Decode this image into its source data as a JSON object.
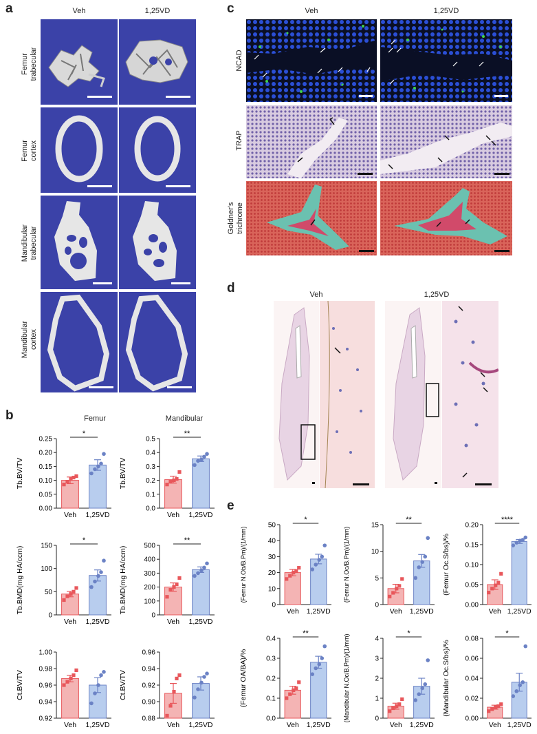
{
  "panels": {
    "a": "a",
    "b": "b",
    "c": "c",
    "d": "d",
    "e": "e"
  },
  "conditions": [
    "Veh",
    "1,25VD"
  ],
  "panel_a": {
    "rows": [
      "Femur\ntrabecular",
      "Femur\ncortex",
      "Mandibular\ntrabecular",
      "Mandibular\ncortex"
    ]
  },
  "panel_b": {
    "col_femur": "Femur",
    "col_mandibular": "Mandibular"
  },
  "panel_c": {
    "rows": [
      "NCAD",
      "TRAP",
      "Goldner's\ntrichrome"
    ]
  },
  "panel_d": {},
  "colors": {
    "veh_fill": "#f4b4b4",
    "veh_stroke": "#e8575b",
    "vd_fill": "#b8cdee",
    "vd_stroke": "#6b82c5",
    "microct_bg": "#3b42a8"
  },
  "chart_data": [
    {
      "id": "b-femur-bvtv",
      "type": "bar",
      "categories": [
        "Veh",
        "1,25VD"
      ],
      "ylabel": "Tb.BV/TV",
      "ylim": [
        0,
        0.25
      ],
      "yticks": [
        "0.00",
        "0.05",
        "0.10",
        "0.15",
        "0.20",
        "0.25"
      ],
      "tickvals": [
        0,
        0.05,
        0.1,
        0.15,
        0.2,
        0.25
      ],
      "values": [
        0.1,
        0.155
      ],
      "errors": [
        0.012,
        0.019
      ],
      "points": [
        [
          0.085,
          0.095,
          0.105,
          0.11,
          0.115
        ],
        [
          0.125,
          0.14,
          0.15,
          0.16,
          0.195
        ]
      ],
      "sig": "*"
    },
    {
      "id": "b-mand-bvtv",
      "type": "bar",
      "categories": [
        "Veh",
        "1,25VD"
      ],
      "ylabel": "Tb.BV/TV",
      "ylim": [
        0,
        0.5
      ],
      "yticks": [
        "0.0",
        "0.1",
        "0.2",
        "0.3",
        "0.4",
        "0.5"
      ],
      "tickvals": [
        0,
        0.1,
        0.2,
        0.3,
        0.4,
        0.5
      ],
      "values": [
        0.205,
        0.355
      ],
      "errors": [
        0.025,
        0.02
      ],
      "points": [
        [
          0.17,
          0.19,
          0.2,
          0.21,
          0.26
        ],
        [
          0.31,
          0.34,
          0.35,
          0.37,
          0.39
        ]
      ],
      "sig": "**"
    },
    {
      "id": "b-femur-bmd",
      "type": "bar",
      "categories": [
        "Veh",
        "1,25VD"
      ],
      "ylabel": "Tb.BMD(mg HA/ccm)",
      "ylim": [
        0,
        150
      ],
      "yticks": [
        "0",
        "50",
        "100",
        "150"
      ],
      "tickvals": [
        0,
        50,
        100,
        150
      ],
      "values": [
        45,
        85
      ],
      "errors": [
        6,
        12
      ],
      "points": [
        [
          32,
          40,
          45,
          50,
          58
        ],
        [
          60,
          72,
          84,
          92,
          117
        ]
      ],
      "sig": "*"
    },
    {
      "id": "b-mand-bmd",
      "type": "bar",
      "categories": [
        "Veh",
        "1,25VD"
      ],
      "ylabel": "Tb.BMD(mg HA/ccm)",
      "ylim": [
        0,
        500
      ],
      "yticks": [
        "0",
        "100",
        "200",
        "300",
        "400",
        "500"
      ],
      "tickvals": [
        0,
        100,
        200,
        300,
        400,
        500
      ],
      "values": [
        200,
        325
      ],
      "errors": [
        30,
        20
      ],
      "points": [
        [
          130,
          180,
          200,
          220,
          265
        ],
        [
          280,
          300,
          320,
          340,
          370
        ]
      ],
      "sig": "**"
    },
    {
      "id": "b-femur-ct",
      "type": "bar",
      "categories": [
        "Veh",
        "1,25VD"
      ],
      "ylabel": "Ct.BV/TV",
      "ylim": [
        0.92,
        1.0
      ],
      "yticks": [
        "0.92",
        "0.94",
        "0.96",
        "0.98",
        "1.00"
      ],
      "tickvals": [
        0.92,
        0.94,
        0.96,
        0.98,
        1.0
      ],
      "values": [
        0.968,
        0.96
      ],
      "errors": [
        0.004,
        0.009
      ],
      "points": [
        [
          0.96,
          0.964,
          0.968,
          0.972,
          0.978
        ],
        [
          0.938,
          0.95,
          0.96,
          0.972,
          0.976
        ]
      ],
      "sig": ""
    },
    {
      "id": "b-mand-ct",
      "type": "bar",
      "categories": [
        "Veh",
        "1,25VD"
      ],
      "ylabel": "Ct.BV/TV",
      "ylim": [
        0.88,
        0.96
      ],
      "yticks": [
        "0.88",
        "0.90",
        "0.92",
        "0.94",
        "0.96"
      ],
      "tickvals": [
        0.88,
        0.9,
        0.92,
        0.94,
        0.96
      ],
      "values": [
        0.91,
        0.922
      ],
      "errors": [
        0.012,
        0.008
      ],
      "points": [
        [
          0.883,
          0.895,
          0.912,
          0.928,
          0.932
        ],
        [
          0.905,
          0.915,
          0.923,
          0.93,
          0.934
        ]
      ],
      "sig": ""
    },
    {
      "id": "e-femur-nob",
      "type": "bar",
      "categories": [
        "Veh",
        "1,25VD"
      ],
      "ylabel": "(Femur N.Ob/B.Pm)/(1/mm)",
      "ylim": [
        0,
        50
      ],
      "yticks": [
        "0",
        "10",
        "20",
        "30",
        "40",
        "50"
      ],
      "tickvals": [
        0,
        10,
        20,
        30,
        40,
        50
      ],
      "values": [
        20,
        28.5
      ],
      "errors": [
        2,
        3
      ],
      "points": [
        [
          16,
          18,
          20,
          21,
          23
        ],
        [
          22,
          25,
          28,
          30,
          37
        ]
      ],
      "sig": "*"
    },
    {
      "id": "e-femur-noc",
      "type": "bar",
      "categories": [
        "Veh",
        "1,25VD"
      ],
      "ylabel": "(Femur N.Oc/B.Pm)/(1/mm)",
      "ylim": [
        0,
        15
      ],
      "yticks": [
        "0",
        "5",
        "10",
        "15"
      ],
      "tickvals": [
        0,
        5,
        10,
        15
      ],
      "values": [
        3,
        8.2
      ],
      "errors": [
        0.8,
        1.2
      ],
      "points": [
        [
          1.5,
          2.2,
          3.0,
          3.5,
          4.8
        ],
        [
          5.0,
          7.0,
          8.0,
          9.0,
          12.5
        ]
      ],
      "sig": "**"
    },
    {
      "id": "e-femur-ocs",
      "type": "bar",
      "categories": [
        "Veh",
        "1,25VD"
      ],
      "ylabel": "(Femur Oc.S/bs)/%",
      "ylim": [
        0,
        0.2
      ],
      "yticks": [
        "0.00",
        "0.05",
        "0.10",
        "0.15",
        "0.20"
      ],
      "tickvals": [
        0,
        0.05,
        0.1,
        0.15,
        0.2
      ],
      "values": [
        0.05,
        0.158
      ],
      "errors": [
        0.012,
        0.005
      ],
      "points": [
        [
          0.03,
          0.04,
          0.048,
          0.055,
          0.077
        ],
        [
          0.148,
          0.155,
          0.16,
          0.162,
          0.168
        ]
      ],
      "sig": "****"
    },
    {
      "id": "e-femur-oa",
      "type": "bar",
      "categories": [
        "Veh",
        "1,25VD"
      ],
      "ylabel": "(Femur OA/BA)/%",
      "ylim": [
        0,
        0.4
      ],
      "yticks": [
        "0.0",
        "0.1",
        "0.2",
        "0.3",
        "0.4"
      ],
      "tickvals": [
        0,
        0.1,
        0.2,
        0.3,
        0.4
      ],
      "values": [
        0.14,
        0.28
      ],
      "errors": [
        0.02,
        0.03
      ],
      "points": [
        [
          0.1,
          0.12,
          0.14,
          0.15,
          0.18
        ],
        [
          0.22,
          0.25,
          0.27,
          0.3,
          0.36
        ]
      ],
      "sig": "**"
    },
    {
      "id": "e-mand-noc",
      "type": "bar",
      "categories": [
        "Veh",
        "1,25VD"
      ],
      "ylabel": "(Mandibular N.Oc/B.Pm)/(1/mm)",
      "ylim": [
        0,
        4
      ],
      "yticks": [
        "0",
        "1",
        "2",
        "3",
        "4"
      ],
      "tickvals": [
        0,
        1,
        2,
        3,
        4
      ],
      "values": [
        0.6,
        1.6
      ],
      "errors": [
        0.15,
        0.4
      ],
      "points": [
        [
          0.35,
          0.5,
          0.6,
          0.7,
          0.95
        ],
        [
          0.9,
          1.2,
          1.5,
          1.7,
          2.9
        ]
      ],
      "sig": "*"
    },
    {
      "id": "e-mand-ocs",
      "type": "bar",
      "categories": [
        "Veh",
        "1,25VD"
      ],
      "ylabel": "(Mandibular Oc.S/bs)/%",
      "ylim": [
        0,
        0.08
      ],
      "yticks": [
        "0.00",
        "0.02",
        "0.04",
        "0.06",
        "0.08"
      ],
      "tickvals": [
        0,
        0.02,
        0.04,
        0.06,
        0.08
      ],
      "values": [
        0.011,
        0.036
      ],
      "errors": [
        0.002,
        0.009
      ],
      "points": [
        [
          0.007,
          0.009,
          0.011,
          0.012,
          0.014
        ],
        [
          0.022,
          0.027,
          0.033,
          0.036,
          0.072
        ]
      ],
      "sig": "*"
    }
  ]
}
